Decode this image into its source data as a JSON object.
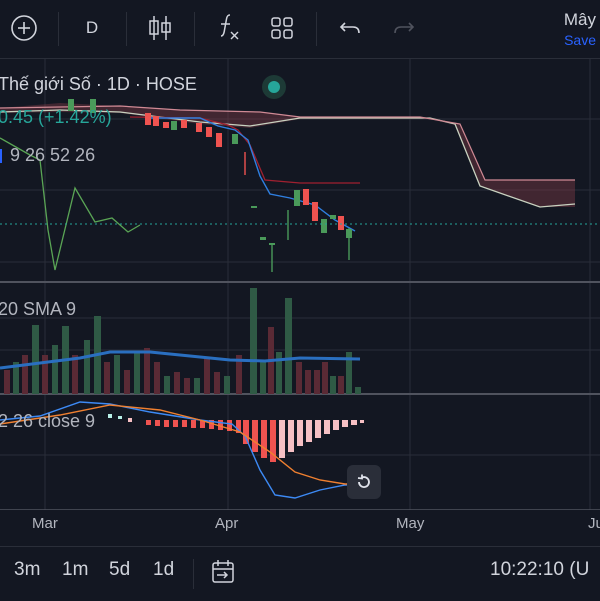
{
  "toolbar": {
    "interval_label": "D",
    "save_title": "Mây",
    "save_label": "Save"
  },
  "legend": {
    "symbol_line": "Thế giới Số · 1D · HOSE",
    "price_change": "0.45 (+1.42%)",
    "ichimoku_label": "9 26 52 26",
    "volume_label": "20 SMA 9",
    "macd_label": "2 26 close 9"
  },
  "time_axis": {
    "labels": [
      "Mar",
      "Apr",
      "May",
      "Ju"
    ]
  },
  "bottom_bar": {
    "ranges": [
      "3m",
      "1m",
      "5d",
      "1d"
    ],
    "clock": "10:22:10 (U"
  },
  "colors": {
    "background": "#131722",
    "up": "#26a69a",
    "down": "#ef5350",
    "accent": "#2962ff",
    "live_dot": "#26a69a"
  },
  "icons": [
    "add-icon",
    "candlestick-icon",
    "indicators-icon",
    "layout-icon",
    "undo-icon",
    "redo-icon",
    "replay-reset-icon",
    "date-range-icon"
  ]
}
